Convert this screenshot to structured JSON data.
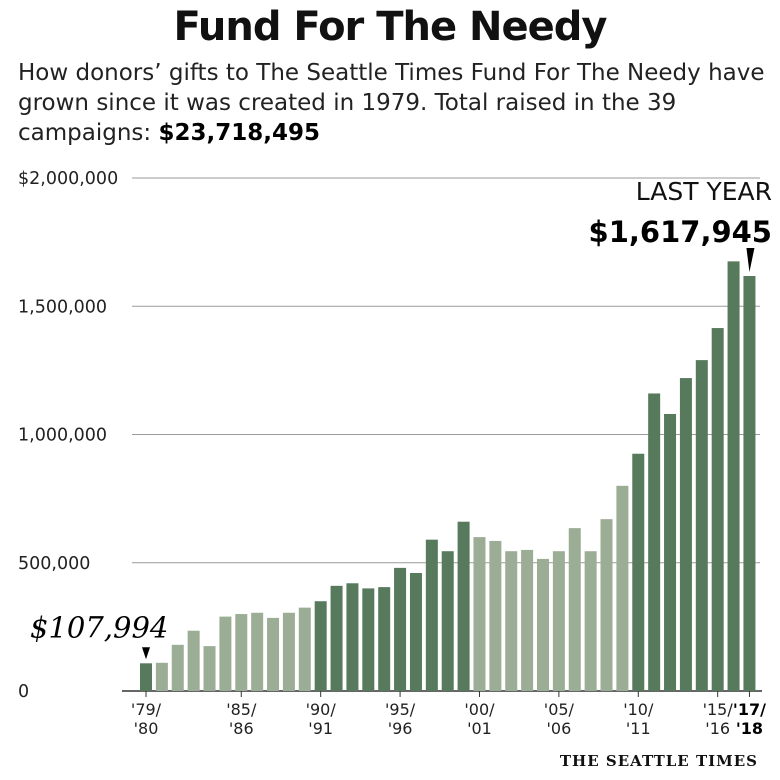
{
  "header": {
    "title": "Fund For The Needy",
    "subtitle_text": "How donors’ gifts to The Seattle Times Fund For The Needy have grown since it was created in 1979. Total raised in the 39 campaigns: ",
    "subtitle_total": "$23,718,495"
  },
  "chart_data": {
    "type": "bar",
    "title": "Fund For The Needy",
    "ylim": [
      0,
      2000000
    ],
    "yticks": [
      {
        "value": 0,
        "label": "0"
      },
      {
        "value": 500000,
        "label": "500,000"
      },
      {
        "value": 1000000,
        "label": "1,000,000"
      },
      {
        "value": 1500000,
        "label": "1,500,000"
      },
      {
        "value": 2000000,
        "label": "$2,000,000"
      }
    ],
    "grid": true,
    "values": [
      107994,
      110000,
      180000,
      235000,
      175000,
      290000,
      300000,
      305000,
      285000,
      305000,
      325000,
      350000,
      410000,
      420000,
      400000,
      405000,
      480000,
      460000,
      590000,
      545000,
      660000,
      600000,
      585000,
      545000,
      550000,
      515000,
      545000,
      635000,
      545000,
      670000,
      800000,
      925000,
      1160000,
      1080000,
      1220000,
      1290000,
      1415000,
      1675000,
      1617945
    ],
    "colors": [
      "dark",
      "light",
      "light",
      "light",
      "light",
      "light",
      "light",
      "light",
      "light",
      "light",
      "light",
      "dark",
      "dark",
      "dark",
      "dark",
      "dark",
      "dark",
      "dark",
      "dark",
      "dark",
      "dark",
      "light",
      "light",
      "light",
      "light",
      "light",
      "light",
      "light",
      "light",
      "light",
      "light",
      "dark",
      "dark",
      "dark",
      "dark",
      "dark",
      "dark",
      "dark",
      "dark"
    ],
    "x_labels": [
      {
        "index": 0,
        "top": "'79/",
        "bottom": "'80",
        "bold": false
      },
      {
        "index": 6,
        "top": "'85/",
        "bottom": "'86",
        "bold": false
      },
      {
        "index": 11,
        "top": "'90/",
        "bottom": "'91",
        "bold": false
      },
      {
        "index": 16,
        "top": "'95/",
        "bottom": "'96",
        "bold": false
      },
      {
        "index": 21,
        "top": "'00/",
        "bottom": "'01",
        "bold": false
      },
      {
        "index": 26,
        "top": "'05/",
        "bottom": "'06",
        "bold": false
      },
      {
        "index": 31,
        "top": "'10/",
        "bottom": "'11",
        "bold": false
      },
      {
        "index": 36,
        "top": "'15/",
        "bottom": "'16",
        "bold": false
      },
      {
        "index": 38,
        "top": "'17/",
        "bottom": "'18",
        "bold": true
      }
    ],
    "annotations": {
      "first": {
        "index": 0,
        "value_label": "$107,994"
      },
      "last": {
        "index": 38,
        "label": "LAST YEAR",
        "value_label": "$1,617,945"
      }
    },
    "palette": {
      "dark": "#577a5c",
      "light": "#9cad96",
      "grid": "#9a9a9a",
      "axis": "#333333"
    }
  },
  "footer": {
    "credit": "THE SEATTLE TIMES"
  }
}
